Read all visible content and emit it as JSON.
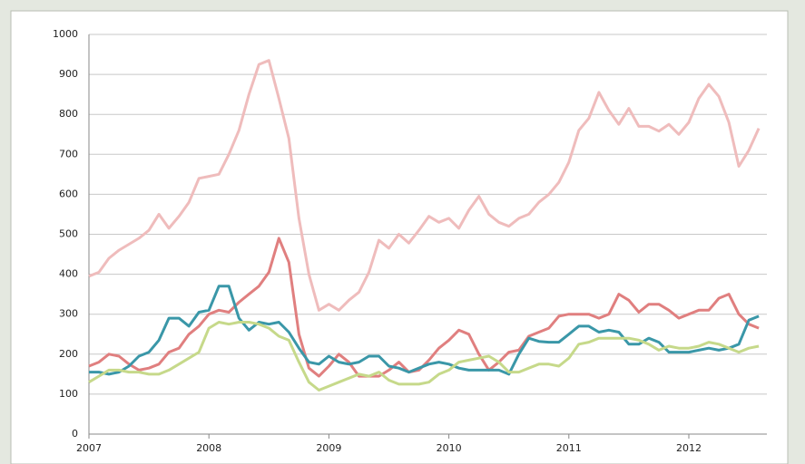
{
  "chart_data": {
    "type": "line",
    "categories": [
      "2007",
      null,
      null,
      null,
      null,
      null,
      null,
      null,
      null,
      null,
      null,
      null,
      "2008",
      null,
      null,
      null,
      null,
      null,
      null,
      null,
      null,
      null,
      null,
      null,
      "2009",
      null,
      null,
      null,
      null,
      null,
      null,
      null,
      null,
      null,
      null,
      null,
      "2010",
      null,
      null,
      null,
      null,
      null,
      null,
      null,
      null,
      null,
      null,
      null,
      "2011",
      null,
      null,
      null,
      null,
      null,
      null,
      null,
      null,
      null,
      null,
      null,
      "2012",
      null,
      null,
      null,
      null,
      null,
      null,
      null
    ],
    "series": [
      {
        "color": "#efbcbc",
        "values": [
          395,
          405,
          440,
          460,
          475,
          490,
          510,
          550,
          515,
          545,
          580,
          640,
          645,
          650,
          700,
          760,
          850,
          925,
          935,
          840,
          740,
          540,
          400,
          310,
          325,
          310,
          335,
          355,
          405,
          485,
          465,
          500,
          478,
          510,
          545,
          530,
          540,
          515,
          560,
          595,
          550,
          530,
          520,
          540,
          550,
          580,
          600,
          630,
          680,
          760,
          790,
          855,
          810,
          775,
          815,
          770,
          770,
          758,
          775,
          750,
          780,
          840,
          875,
          845,
          780,
          670,
          710,
          765
        ]
      },
      {
        "color": "#e07f7f",
        "values": [
          170,
          180,
          200,
          195,
          175,
          160,
          165,
          175,
          205,
          215,
          250,
          270,
          300,
          310,
          305,
          330,
          350,
          370,
          405,
          490,
          430,
          250,
          165,
          145,
          170,
          200,
          180,
          145,
          145,
          145,
          160,
          180,
          155,
          160,
          185,
          215,
          235,
          260,
          250,
          200,
          160,
          180,
          205,
          210,
          245,
          255,
          265,
          295,
          300,
          300,
          300,
          290,
          300,
          350,
          335,
          305,
          325,
          325,
          310,
          290,
          300,
          310,
          310,
          340,
          350,
          300,
          275,
          265
        ]
      },
      {
        "color": "#3a97a8",
        "values": [
          155,
          155,
          150,
          155,
          170,
          195,
          205,
          235,
          290,
          290,
          270,
          305,
          310,
          370,
          370,
          290,
          260,
          280,
          275,
          280,
          255,
          215,
          180,
          175,
          195,
          180,
          175,
          180,
          195,
          195,
          170,
          165,
          155,
          165,
          175,
          180,
          175,
          165,
          160,
          160,
          160,
          160,
          150,
          200,
          240,
          232,
          230,
          230,
          250,
          270,
          270,
          255,
          260,
          255,
          225,
          225,
          240,
          230,
          205,
          205,
          205,
          210,
          215,
          210,
          215,
          225,
          285,
          295
        ]
      },
      {
        "color": "#c6d98a",
        "values": [
          130,
          145,
          160,
          160,
          155,
          155,
          150,
          150,
          160,
          175,
          190,
          205,
          265,
          280,
          275,
          280,
          280,
          275,
          265,
          245,
          235,
          180,
          130,
          110,
          120,
          130,
          140,
          150,
          145,
          155,
          135,
          125,
          125,
          125,
          130,
          150,
          160,
          180,
          185,
          190,
          195,
          180,
          155,
          155,
          165,
          175,
          175,
          170,
          190,
          225,
          230,
          240,
          240,
          240,
          240,
          235,
          225,
          210,
          220,
          215,
          215,
          220,
          230,
          225,
          215,
          205,
          215,
          220
        ]
      }
    ],
    "ylim": [
      0,
      1000
    ],
    "yticks": [
      0,
      100,
      200,
      300,
      400,
      500,
      600,
      700,
      800,
      900,
      1000
    ],
    "grid": true
  }
}
